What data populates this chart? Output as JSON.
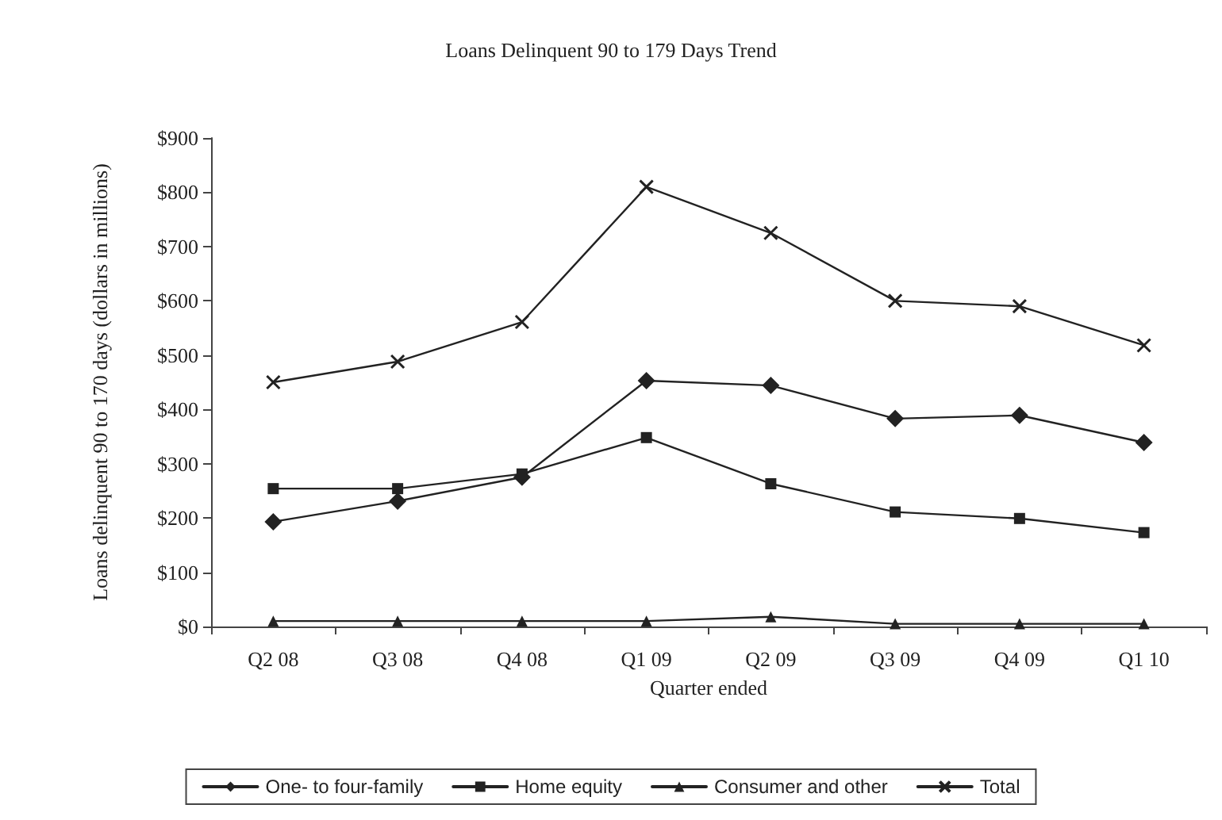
{
  "chart_data": {
    "type": "line",
    "title": "Loans Delinquent 90 to 179 Days Trend",
    "xlabel": "Quarter ended",
    "ylabel": "Loans delinquent 90 to 170 days (dollars in millions)",
    "categories": [
      "Q2 08",
      "Q3 08",
      "Q4 08",
      "Q1 09",
      "Q2 09",
      "Q3 09",
      "Q4 09",
      "Q1 10"
    ],
    "ylim": [
      0,
      900
    ],
    "yticks": [
      {
        "value": 0,
        "label": "$0"
      },
      {
        "value": 100,
        "label": "$100"
      },
      {
        "value": 200,
        "label": "$200"
      },
      {
        "value": 300,
        "label": "$300"
      },
      {
        "value": 400,
        "label": "$400"
      },
      {
        "value": 500,
        "label": "$500"
      },
      {
        "value": 600,
        "label": "$600"
      },
      {
        "value": 700,
        "label": "$700"
      },
      {
        "value": 800,
        "label": "$800"
      },
      {
        "value": 900,
        "label": "$900"
      }
    ],
    "grid": false,
    "legend": "bottom",
    "line_style": "solid",
    "series": [
      {
        "name": "One- to four-family",
        "color": "#222222",
        "marker": "diamond",
        "values": [
          193,
          231,
          275,
          453,
          444,
          383,
          389,
          339
        ]
      },
      {
        "name": "Home equity",
        "color": "#222222",
        "marker": "square",
        "values": [
          254,
          254,
          281,
          348,
          263,
          211,
          199,
          173
        ]
      },
      {
        "name": "Consumer and other",
        "color": "#222222",
        "marker": "triangle",
        "values": [
          10,
          10,
          10,
          10,
          18,
          5,
          5,
          5
        ]
      },
      {
        "name": "Total",
        "color": "#222222",
        "marker": "cross",
        "values": [
          450,
          488,
          561,
          810,
          725,
          600,
          590,
          518
        ]
      }
    ]
  }
}
